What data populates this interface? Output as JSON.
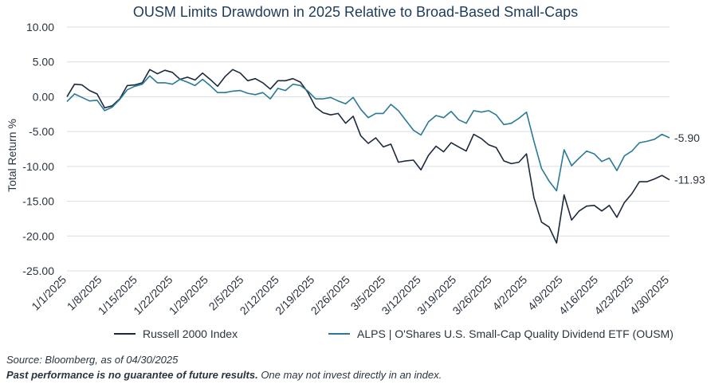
{
  "chart_data": {
    "type": "line",
    "title": "OUSM Limits Drawdown in 2025 Relative to Broad-Based Small-Caps",
    "ylabel": "Total Return %",
    "xlabel": "",
    "ylim": [
      -25,
      10
    ],
    "yticks": [
      "10.00",
      "5.00",
      "0.00",
      "-5.00",
      "-10.00",
      "-15.00",
      "-20.00",
      "-25.00"
    ],
    "ytick_values": [
      10,
      5,
      0,
      -5,
      -10,
      -15,
      -20,
      -25
    ],
    "grid": true,
    "legend_position": "bottom",
    "xtick_labels": [
      "1/1/2025",
      "1/8/2025",
      "1/15/2025",
      "1/22/2025",
      "1/29/2025",
      "2/5/2025",
      "2/12/2025",
      "2/19/2025",
      "2/26/2025",
      "3/5/2025",
      "3/12/2025",
      "3/19/2025",
      "3/26/2025",
      "4/2/2025",
      "4/9/2025",
      "4/16/2025",
      "4/23/2025",
      "4/30/2025"
    ],
    "series": [
      {
        "name": "Russell 2000 Index",
        "color": "#1b2a3d",
        "end_label": "-11.93",
        "values": [
          0.0,
          1.8,
          1.7,
          0.9,
          0.4,
          -1.6,
          -1.3,
          -0.3,
          1.6,
          1.7,
          2.0,
          3.9,
          3.3,
          3.8,
          3.5,
          2.5,
          2.8,
          2.4,
          3.4,
          2.5,
          1.5,
          2.9,
          3.9,
          3.4,
          2.3,
          2.6,
          2.0,
          1.1,
          2.3,
          2.3,
          2.6,
          2.1,
          0.6,
          -1.5,
          -2.3,
          -2.6,
          -2.4,
          -3.8,
          -2.8,
          -5.6,
          -6.7,
          -5.9,
          -7.2,
          -6.8,
          -9.4,
          -9.2,
          -9.1,
          -10.5,
          -8.4,
          -7.1,
          -7.9,
          -6.6,
          -7.2,
          -7.8,
          -5.4,
          -6.0,
          -6.9,
          -7.3,
          -9.2,
          -9.6,
          -9.4,
          -8.2,
          -14.5,
          -18.0,
          -18.7,
          -21.0,
          -14.1,
          -17.7,
          -16.4,
          -15.7,
          -15.6,
          -16.4,
          -15.6,
          -17.3,
          -15.2,
          -13.9,
          -12.2,
          -12.2,
          -11.8,
          -11.3,
          -11.93
        ]
      },
      {
        "name": "ALPS | O'Shares U.S. Small-Cap Quality Dividend ETF (OUSM)",
        "color": "#2a7a96",
        "end_label": "-5.90",
        "values": [
          -0.7,
          0.4,
          -0.1,
          -0.6,
          -0.5,
          -2.0,
          -1.5,
          -0.4,
          1.0,
          1.5,
          1.8,
          3.0,
          2.0,
          2.0,
          1.8,
          2.5,
          2.1,
          1.6,
          2.5,
          1.6,
          0.6,
          0.6,
          0.8,
          0.9,
          0.5,
          0.3,
          0.6,
          -0.3,
          1.2,
          0.9,
          1.8,
          1.6,
          0.8,
          -0.3,
          -0.3,
          -0.1,
          -0.6,
          -1.0,
          -0.1,
          -1.8,
          -3.0,
          -2.4,
          -2.4,
          -1.1,
          -2.0,
          -3.4,
          -4.8,
          -5.5,
          -3.6,
          -2.7,
          -3.0,
          -2.1,
          -3.3,
          -3.8,
          -2.0,
          -2.2,
          -2.0,
          -2.6,
          -4.0,
          -3.8,
          -3.1,
          -2.2,
          -6.4,
          -10.3,
          -12.1,
          -13.5,
          -7.6,
          -9.9,
          -8.8,
          -7.8,
          -8.2,
          -9.3,
          -8.8,
          -10.6,
          -8.5,
          -7.8,
          -6.6,
          -6.4,
          -6.1,
          -5.4,
          -5.9
        ]
      }
    ]
  },
  "footer": {
    "source": "Source: Bloomberg, as of 04/30/2025",
    "disclaimer_bold": "Past performance is no guarantee of future results.",
    "disclaimer_rest": " One may not invest directly in an index."
  }
}
